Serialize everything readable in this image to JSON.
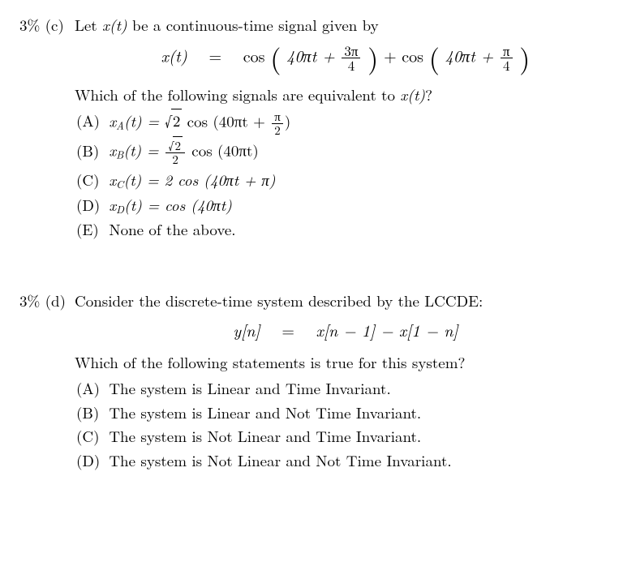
{
  "c": {
    "pct": "3% (c)",
    "prompt_pre": "Let ",
    "prompt_sig": "x(t)",
    "prompt_post": " be a continuous-time signal given by",
    "eq_lhs": "x(t)",
    "eq_eq": "=",
    "eq_cos1": "cos",
    "eq_arg1_a": "40πt +",
    "eq_frac1_num": "3π",
    "eq_frac1_den": "4",
    "eq_plus": "+ cos",
    "eq_arg2_a": "40πt +",
    "eq_frac2_num": "π",
    "eq_frac2_den": "4",
    "question_pre": "Which of the following signals are equivalent to ",
    "question_sig": "x(t)",
    "question_post": "?",
    "choices": {
      "A": {
        "label": "(A)",
        "sig": "x",
        "sub": "A",
        "rest": "(t) = ",
        "sqrt": "2",
        "tail": " cos (40πt + ",
        "frac_num": "π",
        "frac_den": "2",
        "close": ")"
      },
      "B": {
        "label": "(B)",
        "sig": "x",
        "sub": "B",
        "rest": "(t) = ",
        "frac_num_sqrt": "2",
        "frac_den": "2",
        "tail": " cos (40πt)"
      },
      "C": {
        "label": "(C)",
        "sig": "x",
        "sub": "C",
        "rest": "(t) = 2 cos (40πt + π)"
      },
      "D": {
        "label": "(D)",
        "sig": "x",
        "sub": "D",
        "rest": "(t) = cos (40πt)"
      },
      "E": {
        "label": "(E)",
        "text": "None of the above."
      }
    }
  },
  "d": {
    "pct": "3% (d)",
    "prompt": "Consider the discrete-time system described by the LCCDE:",
    "eq_lhs": "y[n]",
    "eq_eq": "=",
    "eq_rhs": "x[n − 1] − x[1 − n]",
    "question": "Which of the following statements is true for this system?",
    "choices": {
      "A": {
        "label": "(A)",
        "text": "The system is Linear and Time Invariant."
      },
      "B": {
        "label": "(B)",
        "text": "The system is Linear and Not Time Invariant."
      },
      "C": {
        "label": "(C)",
        "text": "The system is Not Linear and Time Invariant."
      },
      "D": {
        "label": "(D)",
        "text": "The system is Not Linear and Not Time Invariant."
      }
    }
  }
}
